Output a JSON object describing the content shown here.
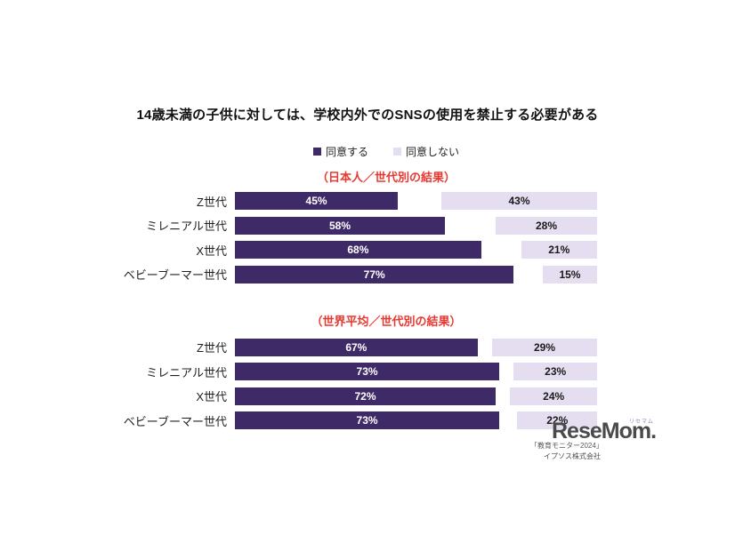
{
  "page": {
    "title": "14歳未満の子供に対しては、学校内外でのSNSの使用を禁止する必要がある",
    "background": "#ffffff"
  },
  "legend": {
    "agree_label": "同意する",
    "disagree_label": "同意しない",
    "position": "top-center"
  },
  "colors": {
    "agree_bar": "#3f2a68",
    "disagree_bar": "#e5def0",
    "section_title_red": "#e8382f",
    "title_text": "#111111",
    "label_text": "#222222",
    "value_on_agree": "#ffffff",
    "value_on_disagree": "#1a1a1a",
    "logo_gray": "#4a4a4a",
    "logo_ruby_purple": "#9286b9",
    "source_text_gray": "#595959"
  },
  "chart_data": [
    {
      "type": "bar",
      "orientation": "horizontal",
      "stacked": true,
      "section_title": "（日本人／世代別の結果）",
      "categories": [
        "Z世代",
        "ミレニアル世代",
        "X世代",
        "ベビーブーマー世代"
      ],
      "series": [
        {
          "name": "同意する",
          "values": [
            45,
            58,
            68,
            77
          ]
        },
        {
          "name": "同意しない",
          "values": [
            43,
            28,
            21,
            15
          ]
        }
      ],
      "value_suffix": "%",
      "xlim": [
        0,
        100
      ],
      "grid": false,
      "legend_position": "top-center-shared"
    },
    {
      "type": "bar",
      "orientation": "horizontal",
      "stacked": true,
      "section_title": "（世界平均／世代別の結果）",
      "categories": [
        "Z世代",
        "ミレニアル世代",
        "X世代",
        "ベビーブーマー世代"
      ],
      "series": [
        {
          "name": "同意する",
          "values": [
            67,
            73,
            72,
            73
          ]
        },
        {
          "name": "同意しない",
          "values": [
            29,
            23,
            24,
            22
          ]
        }
      ],
      "value_suffix": "%",
      "xlim": [
        0,
        100
      ],
      "grid": false,
      "legend_position": "top-center-shared"
    }
  ],
  "footer": {
    "logo_text": "ReseMom.",
    "logo_ruby": "リセマム",
    "source_line": "「教育モニター2024」",
    "source_company": "イプソス株式会社"
  }
}
